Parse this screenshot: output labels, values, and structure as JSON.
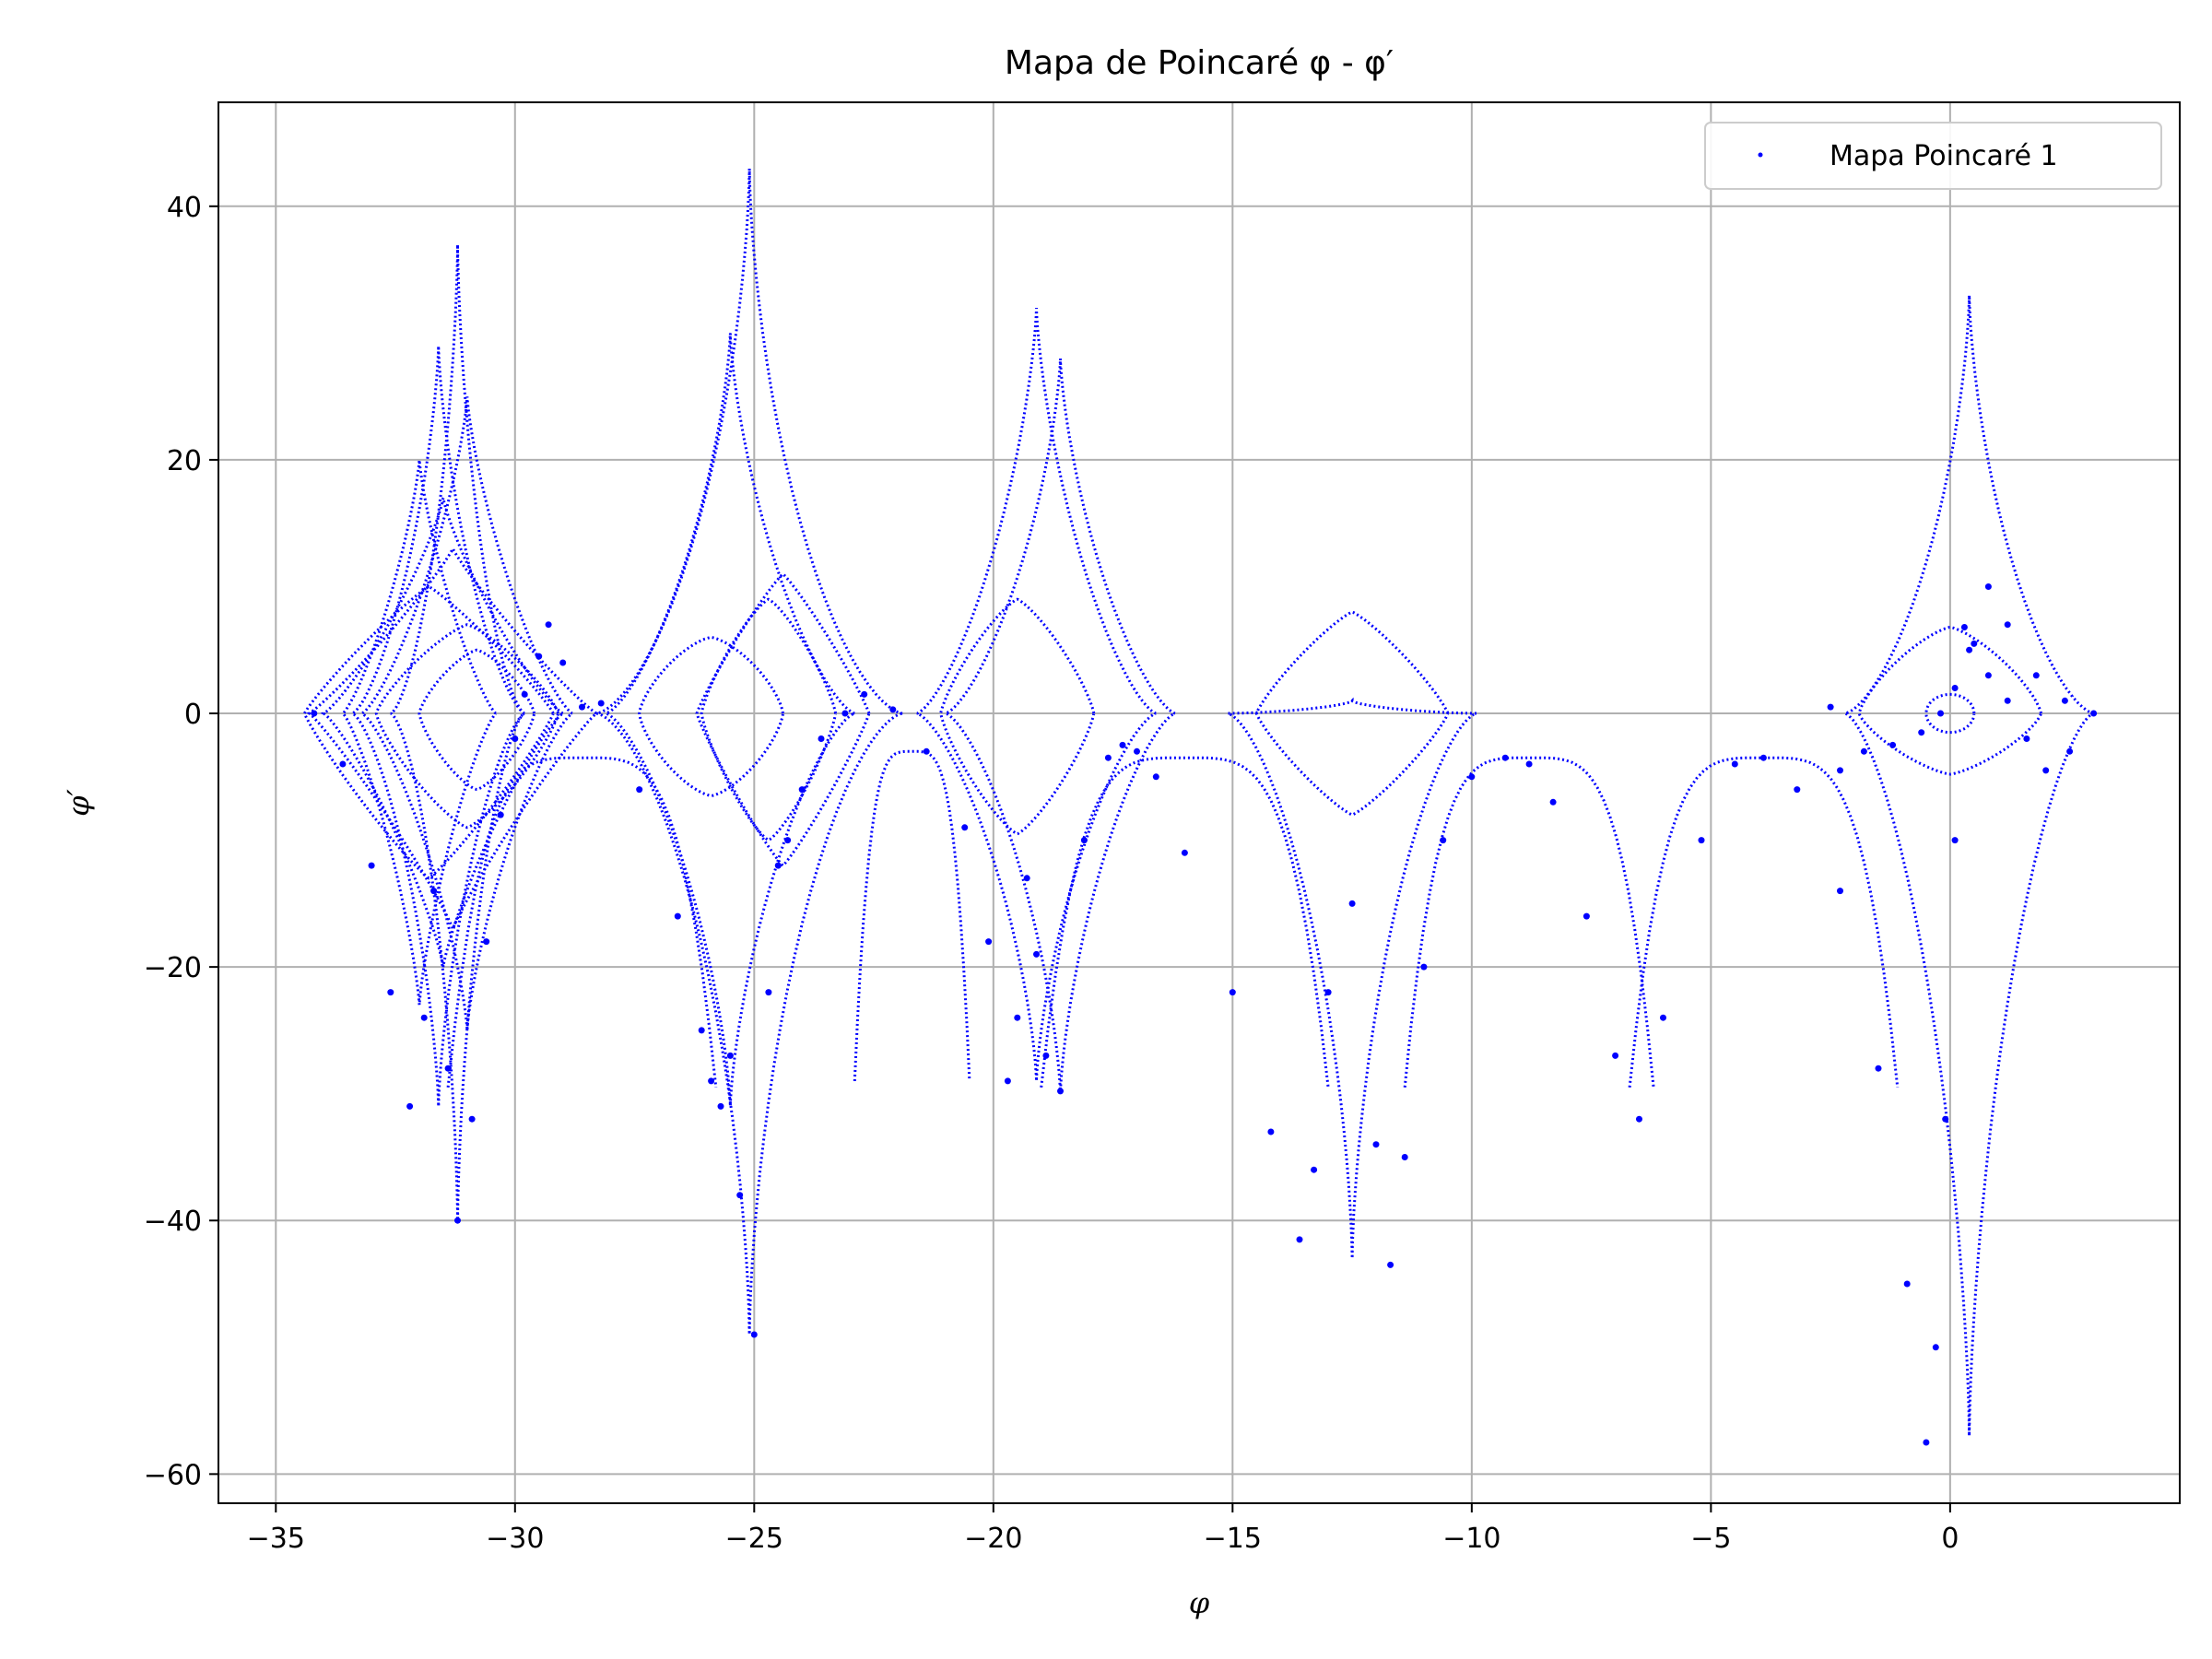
{
  "chart_data": {
    "type": "scatter",
    "title": "Mapa de Poincaré φ - φ′",
    "xlabel": "φ",
    "ylabel": "φ′",
    "xlim": [
      -36.2,
      4.8
    ],
    "ylim": [
      -62.3,
      48.2
    ],
    "x_ticks": [
      -35,
      -30,
      -25,
      -20,
      -15,
      -10,
      -5,
      0
    ],
    "x_tick_labels": [
      "−35",
      "−30",
      "−25",
      "−20",
      "−15",
      "−10",
      "−5",
      "0"
    ],
    "y_ticks": [
      -60,
      -40,
      -20,
      0,
      20,
      40
    ],
    "y_tick_labels": [
      "−60",
      "−40",
      "−20",
      "0",
      "20",
      "40"
    ],
    "grid": true,
    "legend_position": "top-right",
    "marker_color": "#0000ff",
    "series": [
      {
        "name": "Mapa Poincaré 1",
        "color": "#0000ff",
        "x": [
          -34.2,
          -33.6,
          -33.0,
          -32.6,
          -32.2,
          -31.9,
          -31.7,
          -31.4,
          -31.2,
          -30.9,
          -30.6,
          -30.3,
          -30.0,
          -29.8,
          -29.5,
          -29.3,
          -29.0,
          -28.6,
          -28.2,
          -27.4,
          -26.6,
          -26.1,
          -25.9,
          -25.7,
          -25.5,
          -25.3,
          -25.0,
          -24.7,
          -24.5,
          -24.3,
          -24.0,
          -23.6,
          -23.1,
          -22.7,
          -22.1,
          -21.4,
          -20.6,
          -20.1,
          -19.7,
          -19.5,
          -19.3,
          -19.1,
          -18.9,
          -18.6,
          -18.1,
          -17.6,
          -17.3,
          -17.0,
          -16.6,
          -16.0,
          -15.0,
          -14.2,
          -13.6,
          -13.3,
          -13.0,
          -12.5,
          -12.0,
          -11.7,
          -11.4,
          -11.0,
          -10.6,
          -10.0,
          -9.3,
          -8.8,
          -8.3,
          -7.6,
          -7.0,
          -6.5,
          -6.0,
          -5.2,
          -4.5,
          -3.9,
          -3.2,
          -2.3,
          -1.5,
          -0.9,
          -0.5,
          -0.3,
          -0.1,
          0.1,
          0.4,
          0.8,
          1.2,
          1.8,
          2.4,
          3.0,
          2.5,
          2.0,
          1.6,
          1.2,
          0.8,
          0.5,
          0.3,
          0.1,
          -0.2,
          -0.6,
          -1.2,
          -1.8,
          -2.3,
          -2.5
        ],
        "y": [
          0.0,
          -4.0,
          -12.0,
          -22.0,
          -31.0,
          -24.0,
          -14.0,
          -28.0,
          -40.0,
          -32.0,
          -18.0,
          -8.0,
          -2.0,
          1.5,
          4.5,
          7.0,
          4.0,
          0.5,
          0.8,
          -6.0,
          -16.0,
          -25.0,
          -29.0,
          -31.0,
          -27.0,
          -38.0,
          -49.0,
          -22.0,
          -12.0,
          -10.0,
          -6.0,
          -2.0,
          0.0,
          1.5,
          0.3,
          -3.0,
          -9.0,
          -18.0,
          -29.0,
          -24.0,
          -13.0,
          -19.0,
          -27.0,
          -29.8,
          -10.0,
          -3.5,
          -2.5,
          -3.0,
          -5.0,
          -11.0,
          -22.0,
          -33.0,
          -41.5,
          -36.0,
          -22.0,
          -15.0,
          -34.0,
          -43.5,
          -35.0,
          -20.0,
          -10.0,
          -5.0,
          -3.5,
          -4.0,
          -7.0,
          -16.0,
          -27.0,
          -32.0,
          -24.0,
          -10.0,
          -4.0,
          -3.5,
          -6.0,
          -14.0,
          -28.0,
          -45.0,
          -57.5,
          -50.0,
          -32.0,
          -10.0,
          5.0,
          10.0,
          7.0,
          3.0,
          1.0,
          0.0,
          -3.0,
          -4.5,
          -2.0,
          1.0,
          3.0,
          5.5,
          6.8,
          2.0,
          0.0,
          -1.5,
          -2.5,
          -3.0,
          -4.5,
          0.5
        ]
      }
    ]
  }
}
